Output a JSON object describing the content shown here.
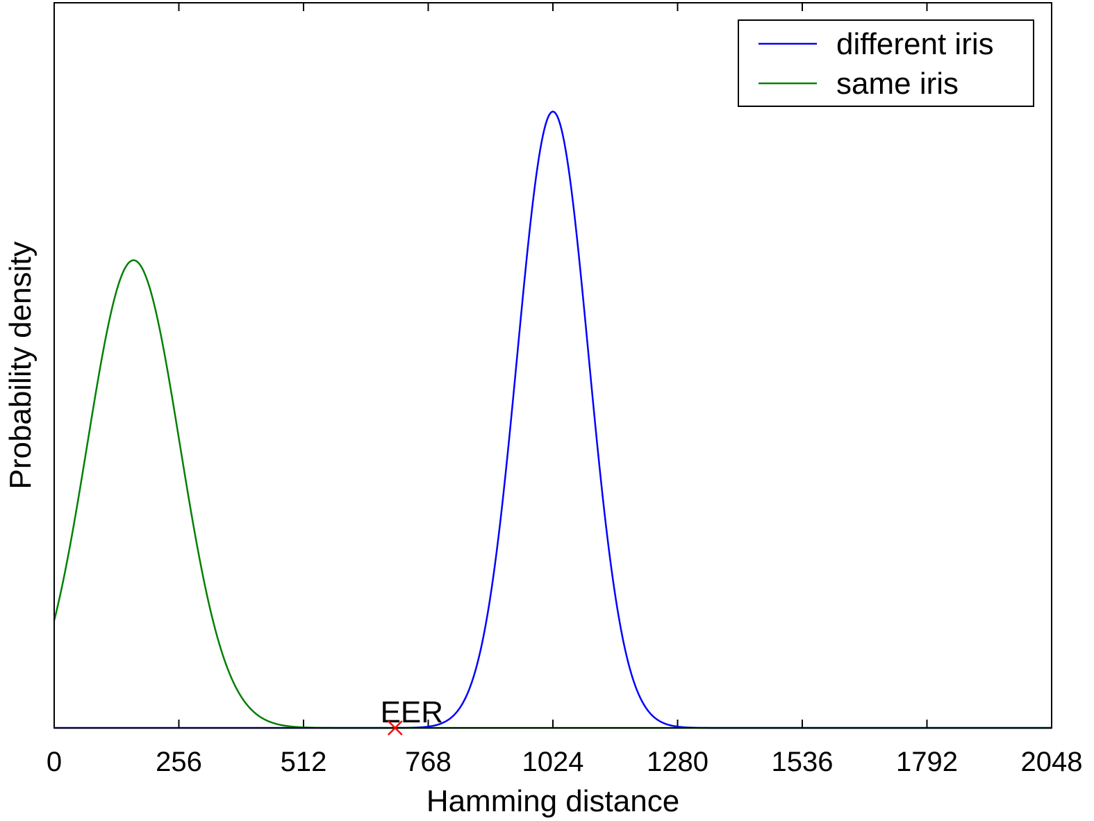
{
  "chart_data": {
    "type": "line",
    "title": "",
    "xlabel": "Hamming distance",
    "ylabel": "Probability density",
    "xlim": [
      0,
      2048
    ],
    "ylim": [
      0,
      1.0
    ],
    "x_ticks": [
      0,
      256,
      512,
      768,
      1024,
      1280,
      1536,
      1792,
      2048
    ],
    "x_tick_labels": [
      "0",
      "256",
      "512",
      "768",
      "1024",
      "1280",
      "1536",
      "1792",
      "2048"
    ],
    "y_ticks_labeled": false,
    "grid": false,
    "legend": {
      "position": "top-right",
      "entries": [
        "different iris",
        "same iris"
      ]
    },
    "series": [
      {
        "name": "different iris",
        "color": "#0000ff",
        "shape": "gaussian",
        "mean": 1024,
        "std": 73,
        "peak": 0.85
      },
      {
        "name": "same iris",
        "color": "#008000",
        "shape": "gaussian",
        "mean": 163,
        "std": 95,
        "peak": 0.645
      }
    ],
    "annotations": [
      {
        "text": "EER",
        "x": 700,
        "y": 0,
        "marker": "x",
        "marker_color": "#ff0000"
      }
    ]
  }
}
